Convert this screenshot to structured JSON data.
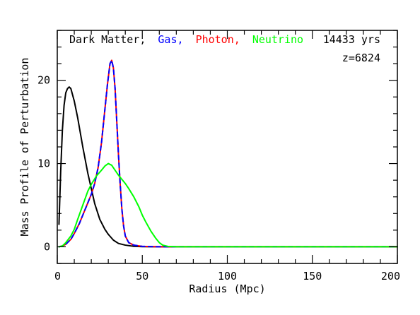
{
  "chart_data": {
    "type": "line",
    "title": "",
    "xlabel": "Radius (Mpc)",
    "ylabel": "Mass Profile of Perturbation",
    "xlim": [
      0,
      200
    ],
    "ylim": [
      -2,
      26
    ],
    "grid": false,
    "legend_position": "top-left",
    "x_ticks": [
      0,
      50,
      100,
      150,
      200
    ],
    "y_ticks": [
      0,
      10,
      20
    ],
    "x_tick_labels": [
      "0",
      "50",
      "100",
      "150",
      "200"
    ],
    "y_tick_labels": [
      "0",
      "10",
      "20"
    ],
    "legend": [
      {
        "label": "Dark Matter,",
        "color": "#000000"
      },
      {
        "label": "Gas,",
        "color": "#0000ff"
      },
      {
        "label": "Photon,",
        "color": "#ff0000"
      },
      {
        "label": "Neutrino",
        "color": "#00ff00"
      }
    ],
    "annotations": [
      {
        "text": "14433 yrs",
        "position": "top-right"
      },
      {
        "text": "z=6824",
        "position": "top-right"
      }
    ],
    "series": [
      {
        "name": "Dark Matter",
        "color": "#000000",
        "points": [
          [
            1,
            2.7
          ],
          [
            2,
            9
          ],
          [
            3,
            14
          ],
          [
            4,
            17
          ],
          [
            5,
            18.5
          ],
          [
            6,
            19
          ],
          [
            7,
            19.2
          ],
          [
            8,
            19
          ],
          [
            10,
            17.5
          ],
          [
            12,
            15.5
          ],
          [
            15,
            12
          ],
          [
            18,
            8.8
          ],
          [
            20,
            7
          ],
          [
            22,
            5.2
          ],
          [
            25,
            3.3
          ],
          [
            28,
            2.1
          ],
          [
            30,
            1.5
          ],
          [
            33,
            0.8
          ],
          [
            36,
            0.4
          ],
          [
            40,
            0.2
          ],
          [
            45,
            0.06
          ],
          [
            50,
            0.02
          ],
          [
            60,
            0
          ],
          [
            200,
            0
          ]
        ]
      },
      {
        "name": "Photon",
        "color": "#ff0000",
        "points": [
          [
            1,
            0
          ],
          [
            3,
            0.1
          ],
          [
            5,
            0.3
          ],
          [
            8,
            0.9
          ],
          [
            10,
            1.6
          ],
          [
            13,
            2.8
          ],
          [
            15,
            3.8
          ],
          [
            18,
            5.3
          ],
          [
            20,
            6.3
          ],
          [
            22,
            7.6
          ],
          [
            24,
            9.5
          ],
          [
            26,
            12.5
          ],
          [
            28,
            16.5
          ],
          [
            29.5,
            19.5
          ],
          [
            31,
            22
          ],
          [
            32,
            22.4
          ],
          [
            33,
            21.5
          ],
          [
            34,
            19
          ],
          [
            35,
            15
          ],
          [
            36,
            11
          ],
          [
            37,
            7.5
          ],
          [
            38,
            4.5
          ],
          [
            39,
            2.5
          ],
          [
            40,
            1.3
          ],
          [
            42,
            0.5
          ],
          [
            45,
            0.2
          ],
          [
            50,
            0.05
          ],
          [
            60,
            0
          ],
          [
            200,
            0
          ]
        ]
      },
      {
        "name": "Gas",
        "color": "#0000ff",
        "points": [
          [
            1,
            0
          ],
          [
            3,
            0.1
          ],
          [
            5,
            0.3
          ],
          [
            8,
            0.9
          ],
          [
            10,
            1.6
          ],
          [
            13,
            2.8
          ],
          [
            15,
            3.8
          ],
          [
            18,
            5.3
          ],
          [
            20,
            6.3
          ],
          [
            22,
            7.6
          ],
          [
            24,
            9.5
          ],
          [
            26,
            12.5
          ],
          [
            28,
            16.5
          ],
          [
            29.5,
            19.5
          ],
          [
            31,
            22
          ],
          [
            32,
            22.4
          ],
          [
            33,
            21.5
          ],
          [
            34,
            19
          ],
          [
            35,
            15
          ],
          [
            36,
            11
          ],
          [
            37,
            7.5
          ],
          [
            38,
            4.5
          ],
          [
            39,
            2.5
          ],
          [
            40,
            1.3
          ],
          [
            42,
            0.5
          ],
          [
            45,
            0.2
          ],
          [
            50,
            0.05
          ],
          [
            60,
            0
          ],
          [
            200,
            0
          ]
        ]
      },
      {
        "name": "Neutrino",
        "color": "#00ff00",
        "points": [
          [
            1,
            0
          ],
          [
            3,
            0.1
          ],
          [
            5,
            0.5
          ],
          [
            8,
            1.3
          ],
          [
            10,
            2.1
          ],
          [
            12,
            3.3
          ],
          [
            15,
            5
          ],
          [
            18,
            6.7
          ],
          [
            20,
            7.5
          ],
          [
            23,
            8.5
          ],
          [
            26,
            9.2
          ],
          [
            28,
            9.7
          ],
          [
            30,
            10
          ],
          [
            32,
            9.8
          ],
          [
            34,
            9.2
          ],
          [
            36,
            8.6
          ],
          [
            38,
            8.1
          ],
          [
            40,
            7.6
          ],
          [
            42,
            7
          ],
          [
            45,
            6
          ],
          [
            48,
            4.8
          ],
          [
            50,
            3.8
          ],
          [
            52,
            3
          ],
          [
            55,
            1.9
          ],
          [
            58,
            1.0
          ],
          [
            60,
            0.5
          ],
          [
            62,
            0.2
          ],
          [
            65,
            0.05
          ],
          [
            70,
            0
          ],
          [
            200,
            0
          ]
        ]
      }
    ]
  }
}
